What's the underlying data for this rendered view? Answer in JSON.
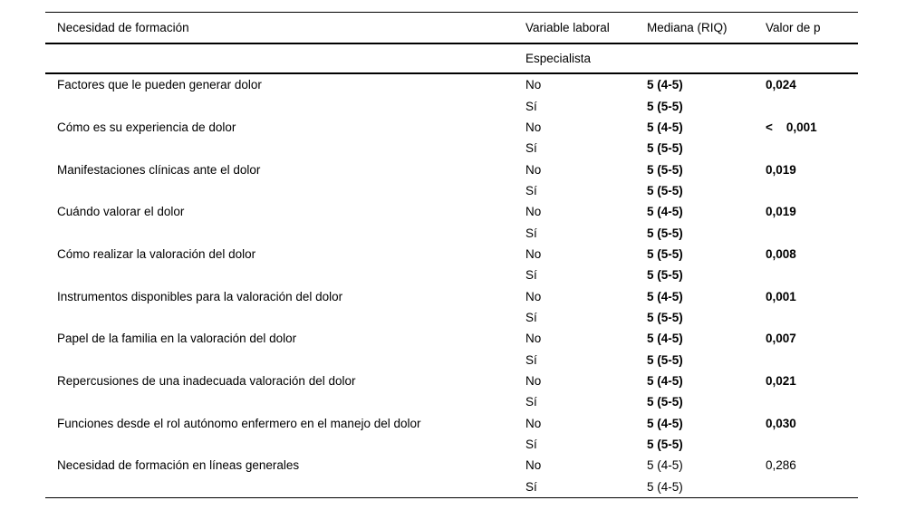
{
  "table": {
    "columns": [
      "Necesidad de formación",
      "Variable laboral",
      "Mediana (RIQ)",
      "Valor de p"
    ],
    "subheader": "Especialista",
    "rows": [
      {
        "need": "Factores que le pueden generar dolor",
        "variable": "No",
        "median": "5 (4-5)",
        "p": "0,024",
        "bold": true
      },
      {
        "need": "",
        "variable": "Sí",
        "median": "5 (5-5)",
        "p": "",
        "bold": true
      },
      {
        "need": "Cómo es su experiencia de dolor",
        "variable": "No",
        "median": "5 (4-5)",
        "p": "<    0,001",
        "bold": true
      },
      {
        "need": "",
        "variable": "Sí",
        "median": "5 (5-5)",
        "p": "",
        "bold": true
      },
      {
        "need": "Manifestaciones clínicas ante el dolor",
        "variable": "No",
        "median": "5 (5-5)",
        "p": "0,019",
        "bold": true
      },
      {
        "need": "",
        "variable": "Sí",
        "median": "5 (5-5)",
        "p": "",
        "bold": true
      },
      {
        "need": "Cuándo valorar el dolor",
        "variable": "No",
        "median": "5 (4-5)",
        "p": "0,019",
        "bold": true
      },
      {
        "need": "",
        "variable": "Sí",
        "median": "5 (5-5)",
        "p": "",
        "bold": true
      },
      {
        "need": "Cómo realizar la valoración del dolor",
        "variable": "No",
        "median": "5 (5-5)",
        "p": "0,008",
        "bold": true
      },
      {
        "need": "",
        "variable": "Sí",
        "median": "5 (5-5)",
        "p": "",
        "bold": true
      },
      {
        "need": "Instrumentos disponibles para la valoración del dolor",
        "variable": "No",
        "median": "5 (4-5)",
        "p": "0,001",
        "bold": true
      },
      {
        "need": "",
        "variable": "Sí",
        "median": "5 (5-5)",
        "p": "",
        "bold": true
      },
      {
        "need": "Papel de la familia en la valoración del dolor",
        "variable": "No",
        "median": "5 (4-5)",
        "p": "0,007",
        "bold": true
      },
      {
        "need": "",
        "variable": "Sí",
        "median": "5 (5-5)",
        "p": "",
        "bold": true
      },
      {
        "need": "Repercusiones de una inadecuada valoración del dolor",
        "variable": "No",
        "median": "5 (4-5)",
        "p": "0,021",
        "bold": true
      },
      {
        "need": "",
        "variable": "Sí",
        "median": "5 (5-5)",
        "p": "",
        "bold": true
      },
      {
        "need": "Funciones desde el rol autónomo enfermero en el manejo del dolor",
        "variable": "No",
        "median": "5 (4-5)",
        "p": "0,030",
        "bold": true
      },
      {
        "need": "",
        "variable": "Sí",
        "median": "5 (5-5)",
        "p": "",
        "bold": true
      },
      {
        "need": "Necesidad de formación en líneas generales",
        "variable": "No",
        "median": "5 (4-5)",
        "p": "0,286",
        "bold": false
      },
      {
        "need": "",
        "variable": "Sí",
        "median": "5 (4-5)",
        "p": "",
        "bold": false
      }
    ]
  },
  "colors": {
    "background": "#ffffff",
    "text": "#000000",
    "rule": "#000000"
  }
}
